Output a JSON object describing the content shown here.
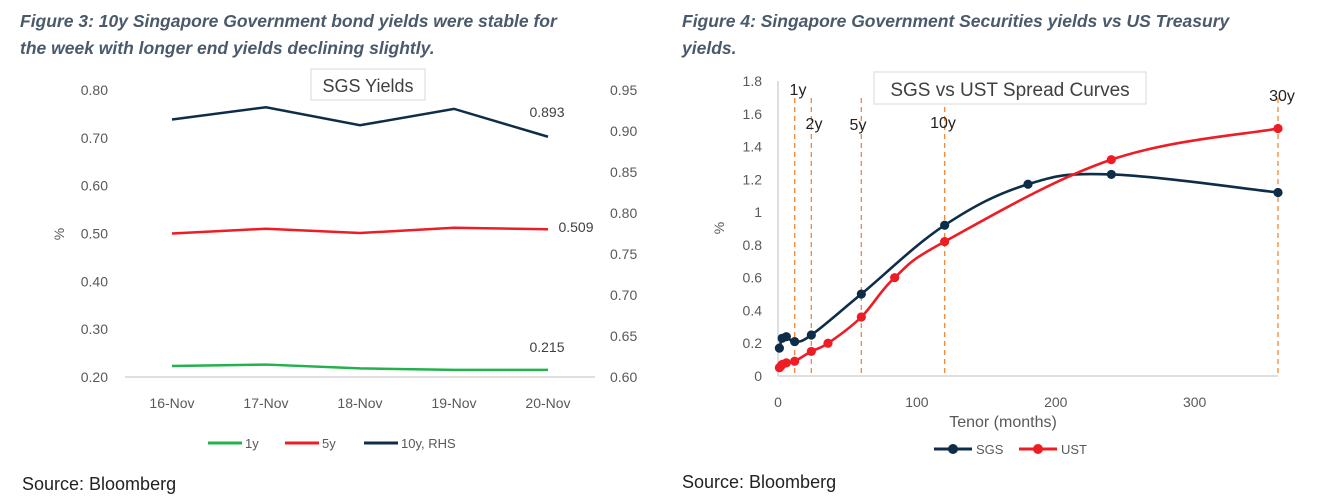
{
  "figure3": {
    "caption_line1": "Figure 3: 10y Singapore Government bond yields were stable for",
    "caption_line2": "the week with longer end yields declining slightly.",
    "source": "Source: Bloomberg"
  },
  "figure4": {
    "caption_line1": "Figure 4: Singapore Government Securities yields vs US Treasury",
    "caption_line2": "yields.",
    "source": "Source: Bloomberg"
  },
  "chart_data": [
    {
      "type": "line",
      "title": "SGS Yields",
      "ylabel": "%",
      "categories": [
        "16-Nov",
        "17-Nov",
        "18-Nov",
        "19-Nov",
        "20-Nov"
      ],
      "ylim": [
        0.2,
        0.8
      ],
      "yticks": [
        "0.20",
        "0.30",
        "0.40",
        "0.50",
        "0.60",
        "0.70",
        "0.80"
      ],
      "y2lim": [
        0.6,
        0.95
      ],
      "y2ticks": [
        "0.60",
        "0.65",
        "0.70",
        "0.75",
        "0.80",
        "0.85",
        "0.90",
        "0.95"
      ],
      "series": [
        {
          "name": "1y",
          "axis": "left",
          "color": "#22b14c",
          "values": [
            0.223,
            0.226,
            0.218,
            0.215,
            0.215
          ],
          "end_label": "0.215"
        },
        {
          "name": "5y",
          "axis": "left",
          "color": "#ee1c24",
          "values": [
            0.5,
            0.51,
            0.501,
            0.512,
            0.509
          ],
          "end_label": "0.509"
        },
        {
          "name": "10y, RHS",
          "axis": "right",
          "color": "#0d2d48",
          "values": [
            0.914,
            0.929,
            0.907,
            0.927,
            0.893
          ],
          "end_label": "0.893"
        }
      ],
      "legend_position": "bottom",
      "grid": false
    },
    {
      "type": "line",
      "title": "SGS vs UST Spread Curves",
      "xlabel": "Tenor (months)",
      "ylabel": "%",
      "xlim": [
        0,
        360
      ],
      "xticks": [
        0,
        100,
        200,
        300
      ],
      "ylim": [
        0,
        1.8
      ],
      "yticks": [
        "0",
        "0.2",
        "0.4",
        "0.6",
        "0.8",
        "1",
        "1.2",
        "1.4",
        "1.6",
        "1.8"
      ],
      "series": [
        {
          "name": "SGS",
          "color": "#0d2d48",
          "x": [
            1,
            3,
            6,
            12,
            24,
            60,
            120,
            180,
            240,
            360
          ],
          "y": [
            0.17,
            0.23,
            0.24,
            0.21,
            0.25,
            0.5,
            0.92,
            1.17,
            1.23,
            1.12
          ]
        },
        {
          "name": "UST",
          "color": "#ee1c24",
          "x": [
            1,
            2,
            3,
            6,
            12,
            24,
            36,
            60,
            84,
            120,
            240,
            360
          ],
          "y": [
            0.05,
            0.06,
            0.07,
            0.08,
            0.09,
            0.15,
            0.2,
            0.36,
            0.6,
            0.82,
            1.32,
            1.51
          ]
        }
      ],
      "markers": [
        {
          "label": "1y",
          "x": 12
        },
        {
          "label": "2y",
          "x": 24
        },
        {
          "label": "5y",
          "x": 60
        },
        {
          "label": "10y",
          "x": 120
        },
        {
          "label": "30y",
          "x": 360
        }
      ],
      "legend_position": "bottom",
      "grid": false
    }
  ]
}
